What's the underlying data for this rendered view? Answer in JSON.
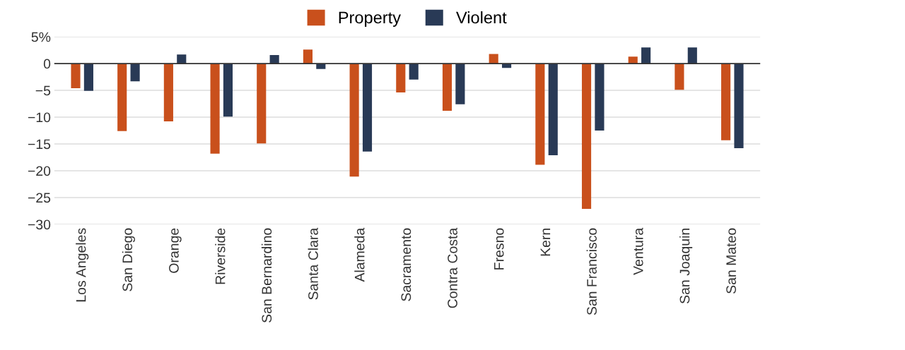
{
  "chart_data": {
    "type": "bar",
    "categories": [
      "Los Angeles",
      "San Diego",
      "Orange",
      "Riverside",
      "San Bernardino",
      "Santa Clara",
      "Alameda",
      "Sacramento",
      "Contra Costa",
      "Fresno",
      "Kern",
      "San Francisco",
      "Ventura",
      "San Joaquin",
      "San Mateo"
    ],
    "series": [
      {
        "name": "Property",
        "color": "#c9501c",
        "values": [
          -4.6,
          -12.6,
          -10.8,
          -16.8,
          -14.9,
          2.6,
          -21.1,
          -5.4,
          -8.8,
          1.8,
          -18.9,
          -27.1,
          1.3,
          -4.9,
          -14.3
        ]
      },
      {
        "name": "Violent",
        "color": "#293a56",
        "values": [
          -5.1,
          -3.3,
          1.7,
          -9.9,
          1.6,
          -1.0,
          -16.4,
          -3.0,
          -7.6,
          -0.8,
          -17.1,
          -12.5,
          3.0,
          3.0,
          -15.8
        ]
      }
    ],
    "ylim": [
      -30,
      5
    ],
    "yticks": [
      {
        "value": 5,
        "label": "5%"
      },
      0,
      {
        "value": -5,
        "label": "−5"
      },
      {
        "value": -10,
        "label": "−10"
      },
      {
        "value": -15,
        "label": "−15"
      },
      {
        "value": -20,
        "label": "−20"
      },
      {
        "value": -25,
        "label": "−25"
      },
      {
        "value": -30,
        "label": "−30"
      }
    ],
    "ref_lines": [
      {
        "axis": "y",
        "value": 0,
        "color": "#333333"
      }
    ],
    "grid": "y",
    "legend": "top"
  }
}
